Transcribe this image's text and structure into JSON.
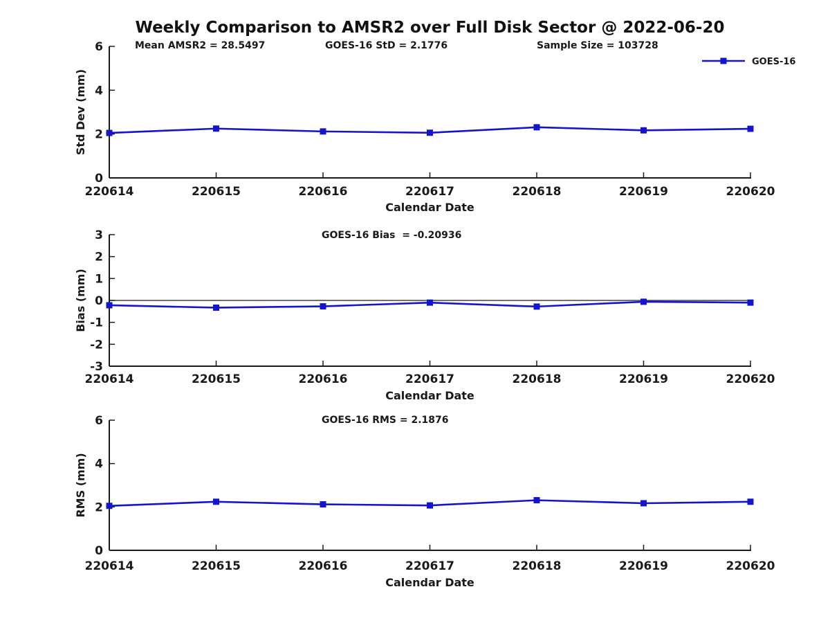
{
  "figure_title": "Weekly Comparison to AMSR2 over Full Disk Sector @ 2022-06-20",
  "style": {
    "line_color": "#1414cd",
    "axis_color": "#1a1a1a",
    "zero_line_color": "#1a1a1a",
    "text_color": "#191919"
  },
  "chart_data": [
    {
      "type": "line",
      "name": "Std Dev",
      "categories": [
        "220614",
        "220615",
        "220616",
        "220617",
        "220618",
        "220619",
        "220620"
      ],
      "series": [
        {
          "name": "GOES-16",
          "values": [
            2.05,
            2.25,
            2.12,
            2.06,
            2.31,
            2.17,
            2.24
          ]
        }
      ],
      "xlabel": "Calendar Date",
      "ylabel": "Std Dev (mm)",
      "ylim": [
        0,
        6
      ],
      "yticks": [
        0,
        2,
        4,
        6
      ],
      "grid": false,
      "marker": "square",
      "legend": {
        "label": "GOES-16",
        "position": "top-right"
      },
      "annotations": [
        "Mean AMSR2 = 28.5497",
        "GOES-16 StD = 2.1776",
        "Sample Size = 103728"
      ]
    },
    {
      "type": "line",
      "name": "Bias",
      "categories": [
        "220614",
        "220615",
        "220616",
        "220617",
        "220618",
        "220619",
        "220620"
      ],
      "series": [
        {
          "name": "GOES-16",
          "values": [
            -0.22,
            -0.33,
            -0.27,
            -0.1,
            -0.28,
            -0.06,
            -0.1
          ]
        }
      ],
      "xlabel": "Calendar Date",
      "ylabel": "Bias (mm)",
      "ylim": [
        -3,
        3
      ],
      "yticks": [
        3,
        2,
        1,
        0,
        -1,
        -2,
        -3
      ],
      "grid": false,
      "marker": "square",
      "zero_line": true,
      "annotations": [
        "GOES-16 Bias  = -0.20936"
      ]
    },
    {
      "type": "line",
      "name": "RMS",
      "categories": [
        "220614",
        "220615",
        "220616",
        "220617",
        "220618",
        "220619",
        "220620"
      ],
      "series": [
        {
          "name": "GOES-16",
          "values": [
            2.05,
            2.24,
            2.12,
            2.07,
            2.31,
            2.17,
            2.24
          ]
        }
      ],
      "xlabel": "Calendar Date",
      "ylabel": "RMS (mm)",
      "ylim": [
        0,
        6
      ],
      "yticks": [
        0,
        2,
        4,
        6
      ],
      "grid": false,
      "marker": "square",
      "annotations": [
        "GOES-16 RMS = 2.1876"
      ]
    }
  ]
}
